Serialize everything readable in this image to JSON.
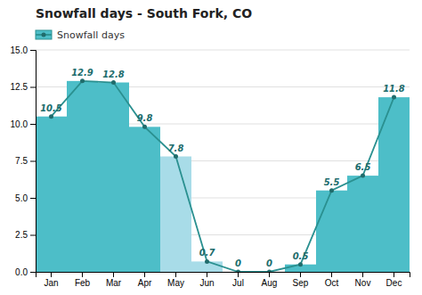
{
  "chart_data": {
    "type": "bar",
    "title": "Snowfall days - South Fork, CO",
    "categories": [
      "Jan",
      "Feb",
      "Mar",
      "Apr",
      "May",
      "Jun",
      "Jul",
      "Aug",
      "Sep",
      "Oct",
      "Nov",
      "Dec"
    ],
    "series": [
      {
        "name": "Snowfall days",
        "values": [
          10.5,
          12.9,
          12.8,
          9.8,
          7.8,
          0.7,
          0,
          0,
          0.5,
          5.5,
          6.5,
          11.8
        ],
        "colors": [
          "#4DBEC8",
          "#4DBEC8",
          "#4DBEC8",
          "#4DBEC8",
          "#A8DCE8",
          "#A8DCE8",
          "#A8DCE8",
          "#A8DCE8",
          "#4DBEC8",
          "#4DBEC8",
          "#4DBEC8",
          "#4DBEC8"
        ],
        "color": "#2a9090",
        "marker": "circle"
      }
    ],
    "ylim": [
      0,
      15.0
    ],
    "yticks": [
      {
        "value": 0,
        "label": "0.0"
      },
      2.5,
      {
        "value": 5,
        "label": "5.0"
      },
      7.5,
      {
        "value": 10,
        "label": "10.0"
      },
      12.5,
      {
        "value": 15,
        "label": "15.0"
      }
    ],
    "grid": true,
    "legend": "upper left",
    "data_labels": true
  }
}
